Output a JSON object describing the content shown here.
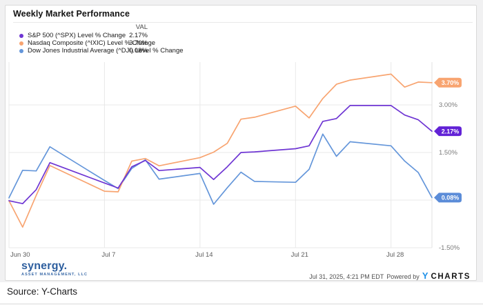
{
  "card": {
    "title": "Weekly Market Performance",
    "legend": {
      "val_header": "VAL",
      "items": [
        {
          "label": "S&P 500 (^SPX) Level % Change",
          "value": "2.17%",
          "color": "#6e35d3"
        },
        {
          "label": "Nasdaq Composite (^IXIC) Level % Change",
          "value": "3.70%",
          "color": "#f8a470"
        },
        {
          "label": "Dow Jones Industrial Average (^DJI) Level % Change",
          "value": "0.08%",
          "color": "#6496da"
        }
      ]
    },
    "footer": {
      "logo_text": "synergy.",
      "logo_subtext": "ASSET MANAGEMENT, LLC",
      "timestamp": "Jul 31, 2025, 4:21 PM EDT",
      "powered_by": "Powered by",
      "ycharts_y": "Y",
      "ycharts_rest": "CHARTS"
    }
  },
  "source_label": "Source: Y-Charts",
  "chart_data": {
    "type": "line",
    "title": "Weekly Market Performance",
    "xlabel": "",
    "ylabel": "Level % Change",
    "ylim": [
      -1.5,
      4.35
    ],
    "x_day_range": [
      0,
      31
    ],
    "grid": true,
    "legend_position": "top-left",
    "x_tick_labels": [
      "Jun 30",
      "Jul 7",
      "Jul 14",
      "Jul 21",
      "Jul 28"
    ],
    "x_tick_days": [
      0,
      7,
      14,
      21,
      28
    ],
    "y_tick_labels": [
      "3.00%",
      "1.50%",
      "-1.50%"
    ],
    "y_ticks": [
      3.0,
      1.5,
      -1.5
    ],
    "y_gridlines": [
      3.0,
      1.5,
      0.0,
      -1.5
    ],
    "dates": [
      "Jun 30",
      "Jul 1",
      "Jul 2",
      "Jul 3",
      "Jul 7",
      "Jul 8",
      "Jul 9",
      "Jul 10",
      "Jul 11",
      "Jul 14",
      "Jul 15",
      "Jul 16",
      "Jul 17",
      "Jul 18",
      "Jul 21",
      "Jul 22",
      "Jul 23",
      "Jul 24",
      "Jul 25",
      "Jul 28",
      "Jul 29",
      "Jul 30",
      "Jul 31"
    ],
    "day_offsets": [
      0,
      1,
      2,
      3,
      7,
      8,
      9,
      10,
      11,
      14,
      15,
      16,
      17,
      18,
      21,
      22,
      23,
      24,
      25,
      28,
      29,
      30,
      31
    ],
    "series": [
      {
        "id": "spx",
        "name": "S&P 500 (^SPX) Level % Change",
        "color": "#6e35d3",
        "badge_color": "#6222d6",
        "badge_label": "2.17%",
        "values": [
          -0.02,
          -0.11,
          0.33,
          1.18,
          0.54,
          0.38,
          1.05,
          1.25,
          0.93,
          1.03,
          0.65,
          1.05,
          1.5,
          1.52,
          1.62,
          1.71,
          2.48,
          2.57,
          2.98,
          2.98,
          2.68,
          2.53,
          2.17
        ]
      },
      {
        "id": "ixic",
        "name": "Nasdaq Composite (^IXIC) Level % Change",
        "color": "#f8a470",
        "badge_color": "#f8a470",
        "badge_label": "3.70%",
        "values": [
          -0.02,
          -0.85,
          0.15,
          1.09,
          0.28,
          0.26,
          1.23,
          1.31,
          1.08,
          1.34,
          1.51,
          1.79,
          2.55,
          2.61,
          2.96,
          2.59,
          3.2,
          3.65,
          3.78,
          3.97,
          3.56,
          3.72,
          3.7
        ]
      },
      {
        "id": "dji",
        "name": "Dow Jones Industrial Average (^DJI) Level % Change",
        "color": "#6496da",
        "badge_color": "#5b8cd8",
        "badge_label": "0.08%",
        "values": [
          0.07,
          0.94,
          0.92,
          1.68,
          0.62,
          0.36,
          1.0,
          1.27,
          0.66,
          0.84,
          -0.13,
          0.39,
          0.88,
          0.59,
          0.56,
          0.97,
          2.08,
          1.38,
          1.84,
          1.71,
          1.23,
          0.87,
          0.08
        ]
      }
    ]
  }
}
